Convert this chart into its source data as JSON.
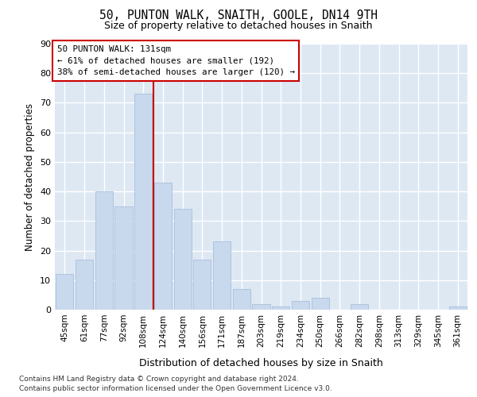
{
  "title1": "50, PUNTON WALK, SNAITH, GOOLE, DN14 9TH",
  "title2": "Size of property relative to detached houses in Snaith",
  "xlabel": "Distribution of detached houses by size in Snaith",
  "ylabel": "Number of detached properties",
  "categories": [
    "45sqm",
    "61sqm",
    "77sqm",
    "92sqm",
    "108sqm",
    "124sqm",
    "140sqm",
    "156sqm",
    "171sqm",
    "187sqm",
    "203sqm",
    "219sqm",
    "234sqm",
    "250sqm",
    "266sqm",
    "282sqm",
    "298sqm",
    "313sqm",
    "329sqm",
    "345sqm",
    "361sqm"
  ],
  "values": [
    12,
    17,
    40,
    35,
    73,
    43,
    34,
    17,
    23,
    7,
    2,
    1,
    3,
    4,
    0,
    2,
    0,
    0,
    0,
    0,
    1
  ],
  "bar_color": "#c8d9ed",
  "bar_edge_color": "#a0b8d8",
  "ref_line_label": "50 PUNTON WALK: 131sqm",
  "annotation_line1": "← 61% of detached houses are smaller (192)",
  "annotation_line2": "38% of semi-detached houses are larger (120) →",
  "box_color": "#cc0000",
  "ylim": [
    0,
    90
  ],
  "yticks": [
    0,
    10,
    20,
    30,
    40,
    50,
    60,
    70,
    80,
    90
  ],
  "background_color": "#dde8f3",
  "grid_color": "#ffffff",
  "fig_background": "#ffffff",
  "footer1": "Contains HM Land Registry data © Crown copyright and database right 2024.",
  "footer2": "Contains public sector information licensed under the Open Government Licence v3.0."
}
